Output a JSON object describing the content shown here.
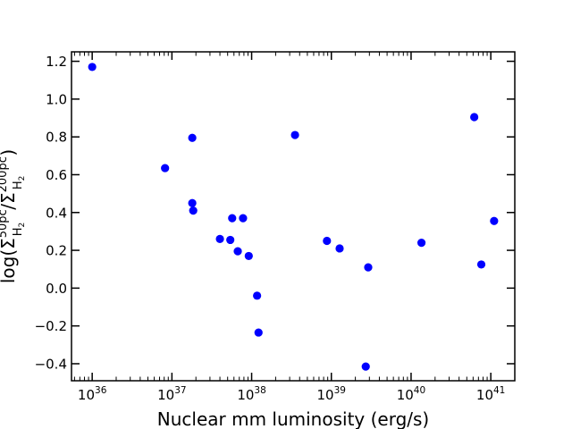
{
  "chart_data": {
    "type": "scatter",
    "title": "",
    "xlabel": "Nuclear mm luminosity (erg/s)",
    "ylabel_parts": {
      "prefix": "log(",
      "sigma": "Σ",
      "numerator_sup": "50pc",
      "numerator_sub": "H",
      "subscript_digit": "2",
      "slash": "/",
      "denominator_sup": "200pc",
      "denominator_sub": "H",
      "suffix": ")"
    },
    "x_scale": "log",
    "xlim": [
      5.5e+35,
      2e+41
    ],
    "ylim": [
      -0.49,
      1.25
    ],
    "x_ticks": [
      {
        "base": "10",
        "exp": "36",
        "value": 1e+36
      },
      {
        "base": "10",
        "exp": "37",
        "value": 1e+37
      },
      {
        "base": "10",
        "exp": "38",
        "value": 1e+38
      },
      {
        "base": "10",
        "exp": "39",
        "value": 1e+39
      },
      {
        "base": "10",
        "exp": "40",
        "value": 1e+40
      },
      {
        "base": "10",
        "exp": "41",
        "value": 1e+41
      }
    ],
    "y_ticks": [
      {
        "label": "1.2",
        "value": 1.2
      },
      {
        "label": "1.0",
        "value": 1.0
      },
      {
        "label": "0.8",
        "value": 0.8
      },
      {
        "label": "0.6",
        "value": 0.6
      },
      {
        "label": "0.4",
        "value": 0.4
      },
      {
        "label": "0.2",
        "value": 0.2
      },
      {
        "label": "0.0",
        "value": 0.0
      },
      {
        "label": "−0.2",
        "value": -0.2
      },
      {
        "label": "−0.4",
        "value": -0.4
      }
    ],
    "grid": false,
    "marker_color": "#0000ff",
    "points": [
      {
        "x": 1e+36,
        "y": 1.17
      },
      {
        "x": 8.2e+36,
        "y": 0.635
      },
      {
        "x": 1.8e+37,
        "y": 0.795
      },
      {
        "x": 1.8e+37,
        "y": 0.45
      },
      {
        "x": 1.85e+37,
        "y": 0.41
      },
      {
        "x": 4e+37,
        "y": 0.26
      },
      {
        "x": 5.4e+37,
        "y": 0.255
      },
      {
        "x": 5.7e+37,
        "y": 0.37
      },
      {
        "x": 6.7e+37,
        "y": 0.195
      },
      {
        "x": 7.8e+37,
        "y": 0.37
      },
      {
        "x": 9.2e+37,
        "y": 0.17
      },
      {
        "x": 1.17e+38,
        "y": -0.04
      },
      {
        "x": 1.22e+38,
        "y": -0.235
      },
      {
        "x": 3.5e+38,
        "y": 0.81
      },
      {
        "x": 8.8e+38,
        "y": 0.25
      },
      {
        "x": 1.27e+39,
        "y": 0.21
      },
      {
        "x": 2.7e+39,
        "y": -0.415
      },
      {
        "x": 2.9e+39,
        "y": 0.11
      },
      {
        "x": 1.35e+40,
        "y": 0.24
      },
      {
        "x": 6.2e+40,
        "y": 0.905
      },
      {
        "x": 7.6e+40,
        "y": 0.125
      },
      {
        "x": 1.1e+41,
        "y": 0.355
      }
    ]
  }
}
